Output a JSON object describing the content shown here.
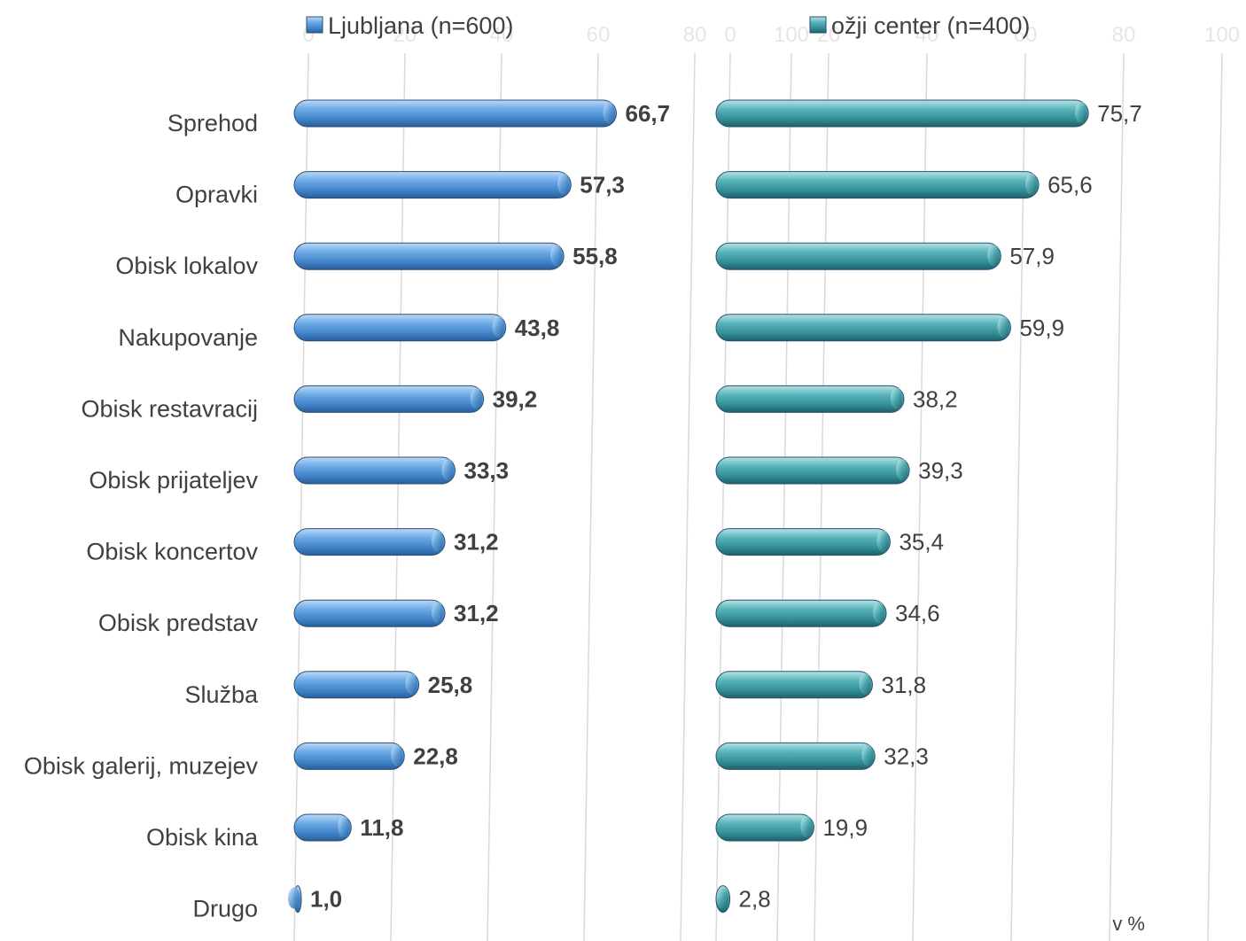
{
  "chart_data": {
    "type": "bar",
    "orientation": "horizontal",
    "categories": [
      "Sprehod",
      "Opravki",
      "Obisk lokalov",
      "Nakupovanje",
      "Obisk restavracij",
      "Obisk prijateljev",
      "Obisk koncertov",
      "Obisk predstav",
      "Služba",
      "Obisk galerij, muzejev",
      "Obisk kina",
      "Drugo"
    ],
    "panels": [
      {
        "legend": "Ljubljana (n=600)",
        "color": "#5b9bd5",
        "values": [
          66.7,
          57.3,
          55.8,
          43.8,
          39.2,
          33.3,
          31.2,
          31.2,
          25.8,
          22.8,
          11.8,
          1.0
        ],
        "value_labels": [
          "66,7",
          "57,3",
          "55,8",
          "43,8",
          "39,2",
          "33,3",
          "31,2",
          "31,2",
          "25,8",
          "22,8",
          "11,8",
          "1,0"
        ],
        "ticks": [
          "0",
          "20",
          "40",
          "60",
          "80",
          "100"
        ],
        "xlim": [
          0,
          100
        ]
      },
      {
        "legend": "ožji center (n=400)",
        "color": "#4aa6ad",
        "values": [
          75.7,
          65.6,
          57.9,
          59.9,
          38.2,
          39.3,
          35.4,
          34.6,
          31.8,
          32.3,
          19.9,
          2.8
        ],
        "value_labels": [
          "75,7",
          "65,6",
          "57,9",
          "59,9",
          "38,2",
          "39,3",
          "35,4",
          "34,6",
          "31,8",
          "32,3",
          "19,9",
          "2,8"
        ],
        "ticks": [
          "0",
          "20",
          "40",
          "60",
          "80",
          "100"
        ],
        "xlim": [
          0,
          100
        ]
      }
    ],
    "unit_label": "v %",
    "grid": true,
    "legend_position": "top"
  }
}
